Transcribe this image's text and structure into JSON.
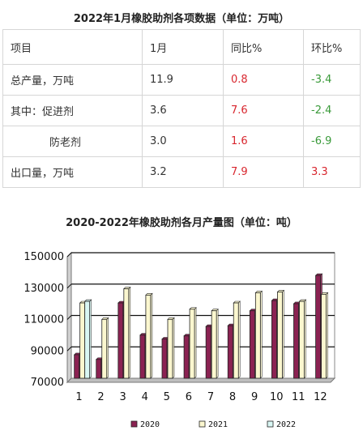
{
  "table": {
    "title": "2022年1月橡胶助剂各项数据（单位：万吨）",
    "headers": [
      "项目",
      "1月",
      "同比%",
      "环比%"
    ],
    "rows": [
      {
        "item": "总产量，万吨",
        "month": "11.9",
        "yoy": "0.8",
        "mom": "-3.4",
        "indent": false
      },
      {
        "item": "其中：促进剂",
        "month": "3.6",
        "yoy": "7.6",
        "mom": "-2.4",
        "indent": false
      },
      {
        "item": "防老剂",
        "month": "3.0",
        "yoy": "1.6",
        "mom": "-6.9",
        "indent": true
      },
      {
        "item": "出口量，万吨",
        "month": "3.2",
        "yoy": "7.9",
        "mom": "3.3",
        "indent": false
      }
    ]
  },
  "chart_data": {
    "type": "bar",
    "title": "2020-2022年橡胶助剂各月产量图（单位：吨）",
    "xlabel": "",
    "ylabel": "",
    "categories": [
      "1",
      "2",
      "3",
      "4",
      "5",
      "6",
      "7",
      "8",
      "9",
      "10",
      "11",
      "12"
    ],
    "ylim": [
      70000,
      150000
    ],
    "yticks": [
      "70000",
      "90000",
      "110000",
      "130000",
      "150000"
    ],
    "series": [
      {
        "name": "2020",
        "color": "#8b2252",
        "values": [
          85000,
          82000,
          118000,
          97500,
          95000,
          97000,
          103000,
          103500,
          113000,
          119500,
          117500,
          135500
        ]
      },
      {
        "name": "2021",
        "color": "#fbf7cf",
        "values": [
          118000,
          107500,
          127000,
          123000,
          107500,
          114000,
          113000,
          118000,
          124500,
          125000,
          119000,
          123500
        ]
      },
      {
        "name": "2022",
        "color": "#d9f7f4",
        "values": [
          119000,
          null,
          null,
          null,
          null,
          null,
          null,
          null,
          null,
          null,
          null,
          null
        ]
      }
    ],
    "grid": true,
    "legend": "bottom"
  }
}
